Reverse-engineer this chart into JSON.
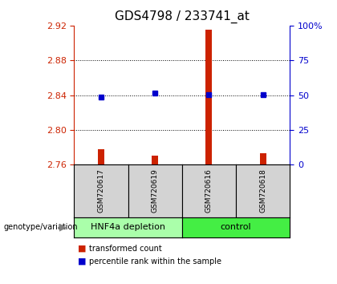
{
  "title": "GDS4798 / 233741_at",
  "samples": [
    "GSM720617",
    "GSM720619",
    "GSM720616",
    "GSM720618"
  ],
  "red_values": [
    2.778,
    2.77,
    2.915,
    2.773
  ],
  "blue_values": [
    2.838,
    2.842,
    2.841,
    2.841
  ],
  "red_baseline": 2.76,
  "ylim_left": [
    2.76,
    2.92
  ],
  "ylim_right": [
    0,
    100
  ],
  "yticks_left": [
    2.76,
    2.8,
    2.84,
    2.88,
    2.92
  ],
  "yticks_right": [
    0,
    25,
    50,
    75,
    100
  ],
  "ytick_labels_right": [
    "0",
    "25",
    "50",
    "75",
    "100%"
  ],
  "grid_lines": [
    2.88,
    2.84,
    2.8
  ],
  "groups": [
    {
      "label": "HNF4a depletion",
      "samples": [
        0,
        1
      ],
      "color": "#aaffaa"
    },
    {
      "label": "control",
      "samples": [
        2,
        3
      ],
      "color": "#44ee44"
    }
  ],
  "group_label_prefix": "genotype/variation",
  "legend_red": "transformed count",
  "legend_blue": "percentile rank within the sample",
  "bar_color": "#cc2200",
  "dot_color": "#0000cc",
  "left_axis_color": "#cc2200",
  "right_axis_color": "#0000cc",
  "title_fontsize": 11,
  "tick_fontsize": 8,
  "sample_box_color": "#d3d3d3",
  "sample_box_border": "#000000"
}
